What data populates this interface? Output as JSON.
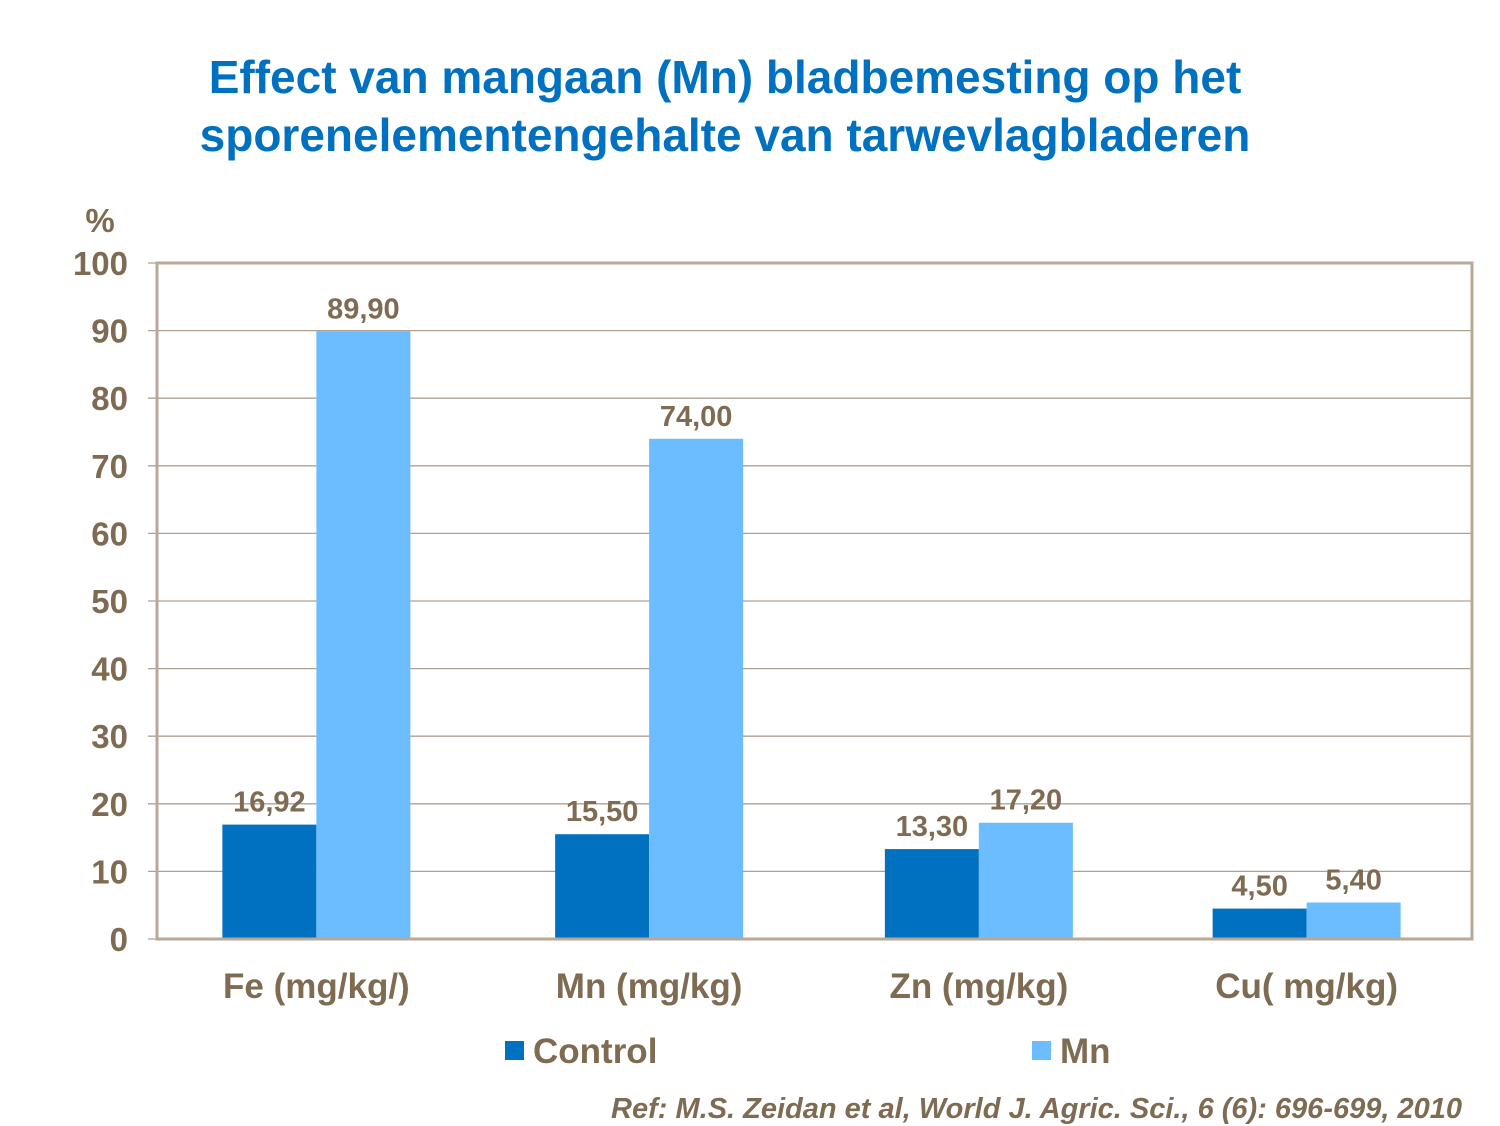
{
  "chart_data": {
    "type": "bar",
    "title": [
      "Effect van mangaan (Mn) bladbemesting op het",
      "sporenelementengehalte van tarwevlagbladeren"
    ],
    "ylabel": "%",
    "xlabel": "",
    "ylim": [
      0,
      100
    ],
    "yticks": [
      "0",
      "10",
      "20",
      "30",
      "40",
      "50",
      "60",
      "70",
      "80",
      "90",
      "100"
    ],
    "grid": true,
    "legend_position": "bottom",
    "categories": [
      "Fe (mg/kg/)",
      "Mn (mg/kg)",
      "Zn (mg/kg)",
      "Cu( mg/kg)"
    ],
    "series": [
      {
        "name": "Control",
        "color": "#0070C0",
        "values": [
          16.92,
          15.5,
          13.3,
          4.5
        ],
        "labels": [
          "16,92",
          "15,50",
          "13,30",
          "4,50"
        ]
      },
      {
        "name": "Mn",
        "color": "#6BBDFF",
        "values": [
          89.9,
          74.0,
          17.2,
          5.4
        ],
        "labels": [
          "89,90",
          "74,00",
          "17,20",
          "5,40"
        ]
      }
    ]
  },
  "reference": "Ref: M.S. Zeidan et al, World J. Agric. Sci., 6 (6): 696-699, 2010",
  "colors": {
    "title": "#0070C0",
    "text": "#7F6A52",
    "frame": "#B8A898"
  }
}
